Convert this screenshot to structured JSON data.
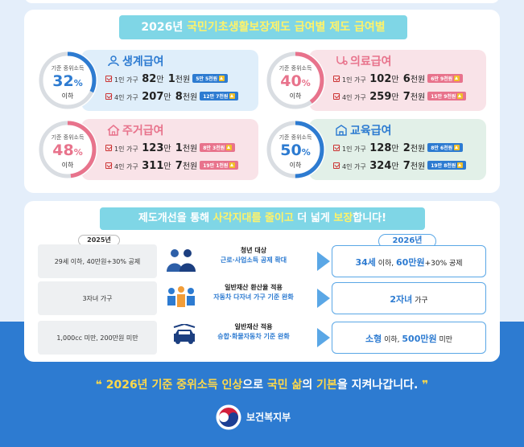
{
  "colors": {
    "blue": "#2d7bd1",
    "pink": "#e8738c",
    "teal": "#7fd6e6",
    "yellow": "#fff36a"
  },
  "section1": {
    "title_year": "2026년",
    "title_hl": "국민기초생활보장제도 급여별",
    "title_rest": "선정 기준"
  },
  "benefits": [
    {
      "name": "생계급여",
      "icon": "person-icon",
      "ring_label": "기준 중위소득",
      "pct": "32",
      "pct_unit": "%",
      "ring_sub": "이하",
      "rows": [
        {
          "label": "1인 가구",
          "a1": "82",
          "u1": "만",
          "a2": "1",
          "u2": "천원",
          "badge": "5만 5천원"
        },
        {
          "label": "4인 가구",
          "a1": "207",
          "u1": "만",
          "a2": "8",
          "u2": "천원",
          "badge": "12만 7천원"
        }
      ]
    },
    {
      "name": "의료급여",
      "icon": "stethoscope-icon",
      "ring_label": "기준 중위소득",
      "pct": "40",
      "pct_unit": "%",
      "ring_sub": "이하",
      "rows": [
        {
          "label": "1인 가구",
          "a1": "102",
          "u1": "만",
          "a2": "6",
          "u2": "천원",
          "badge": "6만 9천원"
        },
        {
          "label": "4인 가구",
          "a1": "259",
          "u1": "만",
          "a2": "7",
          "u2": "천원",
          "badge": "15만 9천원"
        }
      ]
    },
    {
      "name": "주거급여",
      "icon": "house-icon",
      "ring_label": "기준 중위소득",
      "pct": "48",
      "pct_unit": "%",
      "ring_sub": "이하",
      "rows": [
        {
          "label": "1인 가구",
          "a1": "123",
          "u1": "만",
          "a2": "1",
          "u2": "천원",
          "badge": "8만 3천원"
        },
        {
          "label": "4인 가구",
          "a1": "311",
          "u1": "만",
          "a2": "7",
          "u2": "천원",
          "badge": "19만 1천원"
        }
      ]
    },
    {
      "name": "교육급여",
      "icon": "school-icon",
      "ring_label": "기준 중위소득",
      "pct": "50",
      "pct_unit": "%",
      "ring_sub": "이하",
      "rows": [
        {
          "label": "1인 가구",
          "a1": "128",
          "u1": "만",
          "a2": "2",
          "u2": "천원",
          "badge": "8만 6천원"
        },
        {
          "label": "4인 가구",
          "a1": "324",
          "u1": "만",
          "a2": "7",
          "u2": "천원",
          "badge": "19만 8천원"
        }
      ]
    }
  ],
  "section2": {
    "title_a": "제도개선을 통해",
    "title_hl": "사각지대를 줄이고",
    "title_b": "더 넓게",
    "title_hl2": "보장",
    "title_c": "합니다!",
    "old_year": "2025년",
    "new_year": "2026년",
    "items": [
      {
        "old": "29세 이하, 40만원+30% 공제",
        "mid_a": "청년 대상",
        "mid_b": "근로·사업소득 공제 확대",
        "new_hl": "34세",
        "new_a": " 이하, ",
        "new_hl2": "60만원",
        "new_b": "+30% 공제",
        "icon": "young-adults-icon"
      },
      {
        "old": "3자녀 가구",
        "mid_a": "일반재산 환산율 적용",
        "mid_b": "자동차 다자녀 가구 기준 완화",
        "new_hl": "2자녀",
        "new_a": " 가구",
        "new_hl2": "",
        "new_b": "",
        "icon": "children-icon"
      },
      {
        "old": "1,000cc 미만, 200만원 미만",
        "mid_a": "일반재산 적용",
        "mid_b": "승합·화물자동차 기준 완화",
        "new_hl": "소형",
        "new_a": " 이하, ",
        "new_hl2": "500만원",
        "new_b": " 미만",
        "icon": "car-icon"
      }
    ]
  },
  "slogan": {
    "year": "2026년 기준 중위소득 인상",
    "a": "으로 ",
    "hl": "국민 삶",
    "b": "의 ",
    "hl2": "기본",
    "c": "을 지켜나갑니다."
  },
  "footer": {
    "ministry": "보건복지부"
  }
}
